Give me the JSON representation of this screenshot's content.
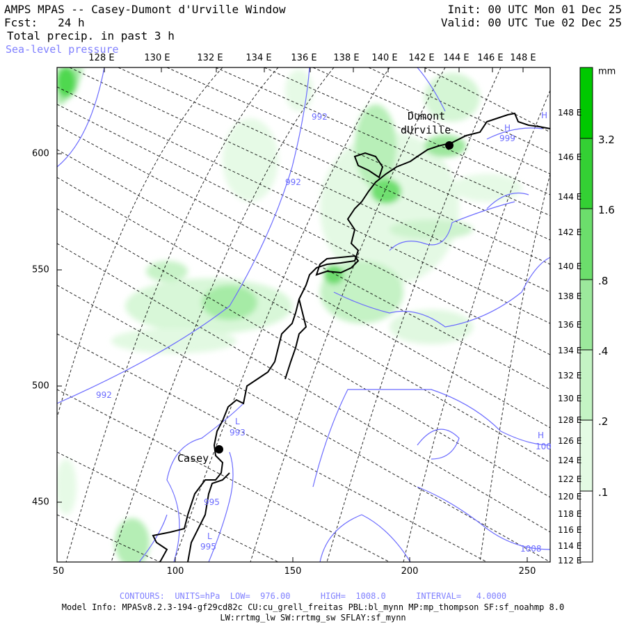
{
  "header": {
    "title": "AMPS MPAS -- Casey-Dumont d'Urville Window",
    "forecast": "Fcst:   24 h",
    "field": "Total precip. in past 3 h",
    "overlay": "Sea-level pressure",
    "init": "Init: 00 UTC Mon 01 Dec 25",
    "valid": "Valid: 00 UTC Tue 02 Dec 25"
  },
  "axes": {
    "top_lon_labels": [
      "128 E",
      "130 E",
      "132 E",
      "134 E",
      "136 E",
      "138 E",
      "140 E",
      "142 E",
      "144 E",
      "146 E",
      "148 E"
    ],
    "right_lon_labels": [
      "148 E",
      "146 E",
      "144 E",
      "142 E",
      "140 E",
      "138 E",
      "136 E",
      "134 E",
      "132 E",
      "130 E",
      "128 E",
      "126 E",
      "124 E",
      "122 E",
      "120 E",
      "118 E",
      "116 E",
      "114 E",
      "112 E"
    ],
    "left_grid_labels": [
      "600",
      "550",
      "500",
      "450"
    ],
    "bottom_grid_labels": [
      "50",
      "100",
      "150",
      "200",
      "250"
    ]
  },
  "colorbar": {
    "unit": "mm",
    "levels": [
      ".1",
      ".2",
      ".4",
      ".8",
      "1.6",
      "3.2"
    ],
    "colors": [
      "#ffffff",
      "#e8fce8",
      "#c8f5c8",
      "#a0eba0",
      "#70e070",
      "#38d038",
      "#00c800"
    ]
  },
  "stations": [
    {
      "name": "Casey"
    },
    {
      "name_line1": "Dumont",
      "name_line2": "dUrville"
    }
  ],
  "contour_labels": [
    "992",
    "992",
    "992",
    "999",
    "993",
    "995",
    "995",
    "1008",
    "100"
  ],
  "pressure_systems": [
    "H",
    "H",
    "H",
    "L",
    "L"
  ],
  "footer": {
    "contours": "CONTOURS:  UNITS=hPa  LOW=  976.00      HIGH=  1008.0      INTERVAL=   4.0000",
    "model_info": "Model Info: MPASv8.2.3-194-gf29cd82c CU:cu_grell_freitas PBL:bl_mynn MP:mp_thompson SF:sf_noahmp 8.0",
    "model_info2": "LW:rrtmg_lw SW:rrtmg_sw SFLAY:sf_mynn"
  },
  "style": {
    "coast_color": "#000000",
    "contour_color": "#6b6bff",
    "grid_color": "#000000"
  }
}
